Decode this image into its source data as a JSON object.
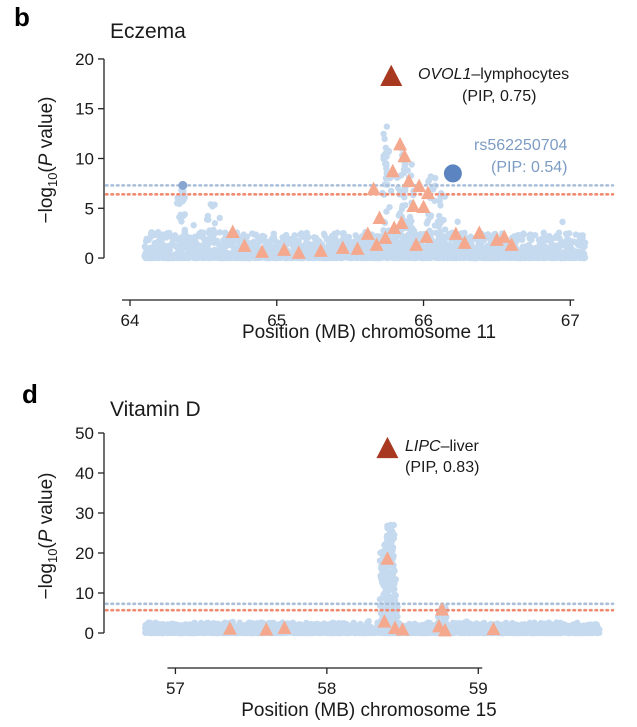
{
  "chart_data": [
    {
      "type": "scatter",
      "panel": "b",
      "title": "Eczema",
      "xlabel": "Position (MB) chromosome 11",
      "ylabel": "−log10(P value)",
      "ylabel_parts": {
        "pre": "−log",
        "sub": "10",
        "mid": "(",
        "italic": "P",
        "post": " value)"
      },
      "xlim": [
        64.0,
        67.25
      ],
      "ylim": [
        -1,
        21
      ],
      "xticks": [
        64,
        65,
        66,
        67
      ],
      "yticks": [
        0,
        5,
        10,
        15,
        20
      ],
      "thresholds": [
        {
          "y": 7.3,
          "color": "#a9bfd9"
        },
        {
          "y": 6.4,
          "color": "#f08a70"
        }
      ],
      "background": {
        "x_start": 64.1,
        "x_end": 67.1,
        "color": "#c6daef",
        "peaks": [
          [
            64.35,
            6.8
          ],
          [
            64.55,
            5.4
          ],
          [
            65.75,
            13.2
          ],
          [
            65.85,
            11.0
          ],
          [
            66.05,
            8.2
          ],
          [
            66.12,
            6.5
          ],
          [
            65.92,
            9.4
          ]
        ]
      },
      "points": [
        {
          "x": 64.36,
          "y": 7.3,
          "color": "#86a6d0"
        },
        {
          "x": 66.2,
          "y": 8.5,
          "color": "#5b84c0",
          "size": 9
        }
      ],
      "gene_markers": [
        [
          64.7,
          2.6
        ],
        [
          64.78,
          1.2
        ],
        [
          64.9,
          0.6
        ],
        [
          65.05,
          0.8
        ],
        [
          65.15,
          0.5
        ],
        [
          65.3,
          0.7
        ],
        [
          65.45,
          1.0
        ],
        [
          65.55,
          0.9
        ],
        [
          65.62,
          2.4
        ],
        [
          65.66,
          6.9
        ],
        [
          65.7,
          4.0
        ],
        [
          65.74,
          2.0
        ],
        [
          65.79,
          8.7
        ],
        [
          65.84,
          11.4
        ],
        [
          65.87,
          10.2
        ],
        [
          65.9,
          7.7
        ],
        [
          65.85,
          3.5
        ],
        [
          65.93,
          5.2
        ],
        [
          65.97,
          7.2
        ],
        [
          66.0,
          5.1
        ],
        [
          66.03,
          6.5
        ],
        [
          66.02,
          2.1
        ],
        [
          65.95,
          1.3
        ],
        [
          66.22,
          2.4
        ],
        [
          66.28,
          1.5
        ],
        [
          66.38,
          2.5
        ],
        [
          66.5,
          1.8
        ],
        [
          66.55,
          2.1
        ],
        [
          66.6,
          1.3
        ],
        [
          65.68,
          1.3
        ],
        [
          65.8,
          3.0
        ]
      ],
      "gene_marker_color": "#f4a98e",
      "lead": {
        "x": 65.78,
        "y": 18.2,
        "color": "#a83820"
      },
      "annotations": [
        {
          "gene": "OVOL1",
          "tissue": "–lymphocytes",
          "pip": "(PIP, 0.75)"
        },
        {
          "snp": "rs562250704",
          "pip": "(PIP: 0.54)"
        }
      ]
    },
    {
      "type": "scatter",
      "panel": "d",
      "title": "Vitamin D",
      "xlabel": "Position (MB) chromosome 15",
      "ylabel": "−log10(P value)",
      "ylabel_parts": {
        "pre": "−log",
        "sub": "10",
        "mid": "(",
        "italic": "P",
        "post": " value)"
      },
      "xlim": [
        56.7,
        59.85
      ],
      "ylim": [
        -2,
        51
      ],
      "xticks": [
        57,
        58,
        59
      ],
      "yticks": [
        0,
        10,
        20,
        30,
        40,
        50
      ],
      "thresholds": [
        {
          "y": 7.3,
          "color": "#a9bfd9"
        },
        {
          "y": 5.7,
          "color": "#f08a70"
        }
      ],
      "background": {
        "x_start": 56.8,
        "x_end": 59.8,
        "color": "#c6daef",
        "peaks": [
          [
            58.42,
            27.0
          ],
          [
            58.38,
            22.0
          ],
          [
            58.44,
            17.0
          ],
          [
            58.76,
            6.5
          ]
        ]
      },
      "points": [],
      "gene_markers": [
        [
          57.36,
          1.0
        ],
        [
          57.6,
          0.8
        ],
        [
          57.72,
          1.2
        ],
        [
          58.4,
          18.5
        ],
        [
          58.38,
          2.8
        ],
        [
          58.45,
          1.2
        ],
        [
          58.5,
          0.8
        ],
        [
          58.74,
          1.6
        ],
        [
          58.76,
          5.8
        ],
        [
          58.78,
          0.6
        ],
        [
          59.1,
          0.9
        ]
      ],
      "gene_marker_color": "#f4a98e",
      "lead": {
        "x": 58.4,
        "y": 46.0,
        "color": "#a83820"
      },
      "annotations": [
        {
          "gene": "LIPC",
          "tissue": "–liver",
          "pip": "(PIP, 0.83)"
        }
      ]
    }
  ]
}
